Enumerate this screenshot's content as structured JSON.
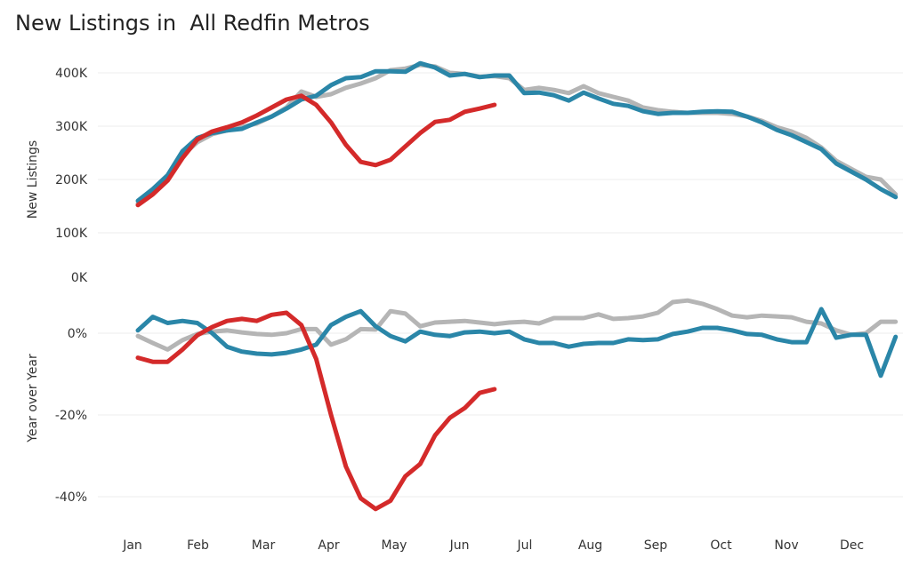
{
  "chart_data": [
    {
      "type": "line",
      "title": "New Listings in  All Redfin Metros",
      "xlabel": "",
      "ylabel": "New Listings",
      "ylim": [
        0,
        420
      ],
      "yticks": [
        0,
        100,
        200,
        300,
        400
      ],
      "ytick_labels": [
        "0K",
        "100K",
        "200K",
        "300K",
        "400K"
      ],
      "x_unit": "week index (0-51)",
      "months": [
        "Jan",
        "Feb",
        "Mar",
        "Apr",
        "May",
        "Jun",
        "Jul",
        "Aug",
        "Sep",
        "Oct",
        "Nov",
        "Dec"
      ],
      "grid": true,
      "series": [
        {
          "id": "gray",
          "color": "#b5b5b5",
          "values": [
            155,
            175,
            205,
            245,
            270,
            285,
            292,
            298,
            305,
            318,
            335,
            365,
            355,
            360,
            372,
            380,
            390,
            405,
            408,
            415,
            412,
            400,
            398,
            393,
            394,
            390,
            368,
            372,
            368,
            362,
            375,
            362,
            355,
            348,
            335,
            330,
            327,
            325,
            325,
            325,
            323,
            318,
            310,
            298,
            290,
            278,
            260,
            235,
            220,
            205,
            200,
            172
          ]
        },
        {
          "id": "blue",
          "color": "#2a86a8",
          "values": [
            160,
            182,
            208,
            253,
            278,
            287,
            292,
            295,
            307,
            318,
            333,
            350,
            357,
            377,
            390,
            392,
            403,
            403,
            402,
            418,
            410,
            395,
            398,
            392,
            395,
            395,
            362,
            363,
            358,
            348,
            363,
            352,
            342,
            338,
            328,
            323,
            325,
            325,
            327,
            328,
            327,
            318,
            307,
            293,
            283,
            270,
            257,
            230,
            215,
            200,
            182,
            167
          ]
        },
        {
          "id": "red",
          "color": "#d42a2a",
          "values": [
            152,
            172,
            198,
            240,
            275,
            290,
            298,
            307,
            320,
            335,
            350,
            357,
            340,
            307,
            265,
            233,
            227,
            237,
            262,
            287,
            308,
            312,
            327,
            333,
            340
          ]
        }
      ]
    },
    {
      "type": "line",
      "title": "",
      "xlabel": "",
      "ylabel": "Year over Year",
      "ylim": [
        -45,
        9
      ],
      "yticks": [
        -40,
        -20,
        0
      ],
      "ytick_labels": [
        "-40%",
        "-20%",
        "0%"
      ],
      "x_unit": "week index (0-51)",
      "grid": true,
      "series": [
        {
          "id": "gray",
          "color": "#b5b5b5",
          "values": [
            -0.7,
            -2.4,
            -4,
            -1.7,
            -0.2,
            0.4,
            0.7,
            0.2,
            -0.2,
            -0.4,
            0,
            1,
            1,
            -2.8,
            -1.5,
            1,
            0.9,
            5.4,
            4.8,
            1.7,
            2.6,
            2.8,
            3,
            2.6,
            2.2,
            2.6,
            2.8,
            2.4,
            3.7,
            3.7,
            3.7,
            4.6,
            3.5,
            3.7,
            4.1,
            5,
            7.6,
            8,
            7.2,
            5.9,
            4.3,
            3.9,
            4.3,
            4.1,
            3.9,
            2.8,
            2.4,
            0.7,
            -0.4,
            0,
            2.8,
            2.8
          ]
        },
        {
          "id": "blue",
          "color": "#2a86a8",
          "values": [
            0.7,
            4,
            2.5,
            3,
            2.5,
            0,
            -3.3,
            -4.5,
            -5,
            -5.2,
            -4.8,
            -4,
            -2.8,
            2,
            4,
            5.4,
            1.7,
            -0.7,
            -2,
            0.4,
            -0.4,
            -0.7,
            0.2,
            0.4,
            0,
            0.4,
            -1.5,
            -2.4,
            -2.4,
            -3.3,
            -2.6,
            -2.4,
            -2.4,
            -1.5,
            -1.7,
            -1.5,
            -0.2,
            0.4,
            1.3,
            1.3,
            0.7,
            -0.2,
            -0.4,
            -1.5,
            -2.2,
            -2.2,
            5.9,
            -1.1,
            -0.4,
            -0.4,
            -10.4,
            -0.9
          ]
        },
        {
          "id": "red",
          "color": "#d42a2a",
          "values": [
            -6,
            -7,
            -7,
            -4,
            -0.5,
            1.5,
            3,
            3.5,
            3,
            4.5,
            5,
            2,
            -6.3,
            -20,
            -32.6,
            -40.4,
            -43,
            -41,
            -35,
            -32,
            -25,
            -20.7,
            -18.3,
            -14.6,
            -13.7
          ]
        }
      ]
    }
  ]
}
